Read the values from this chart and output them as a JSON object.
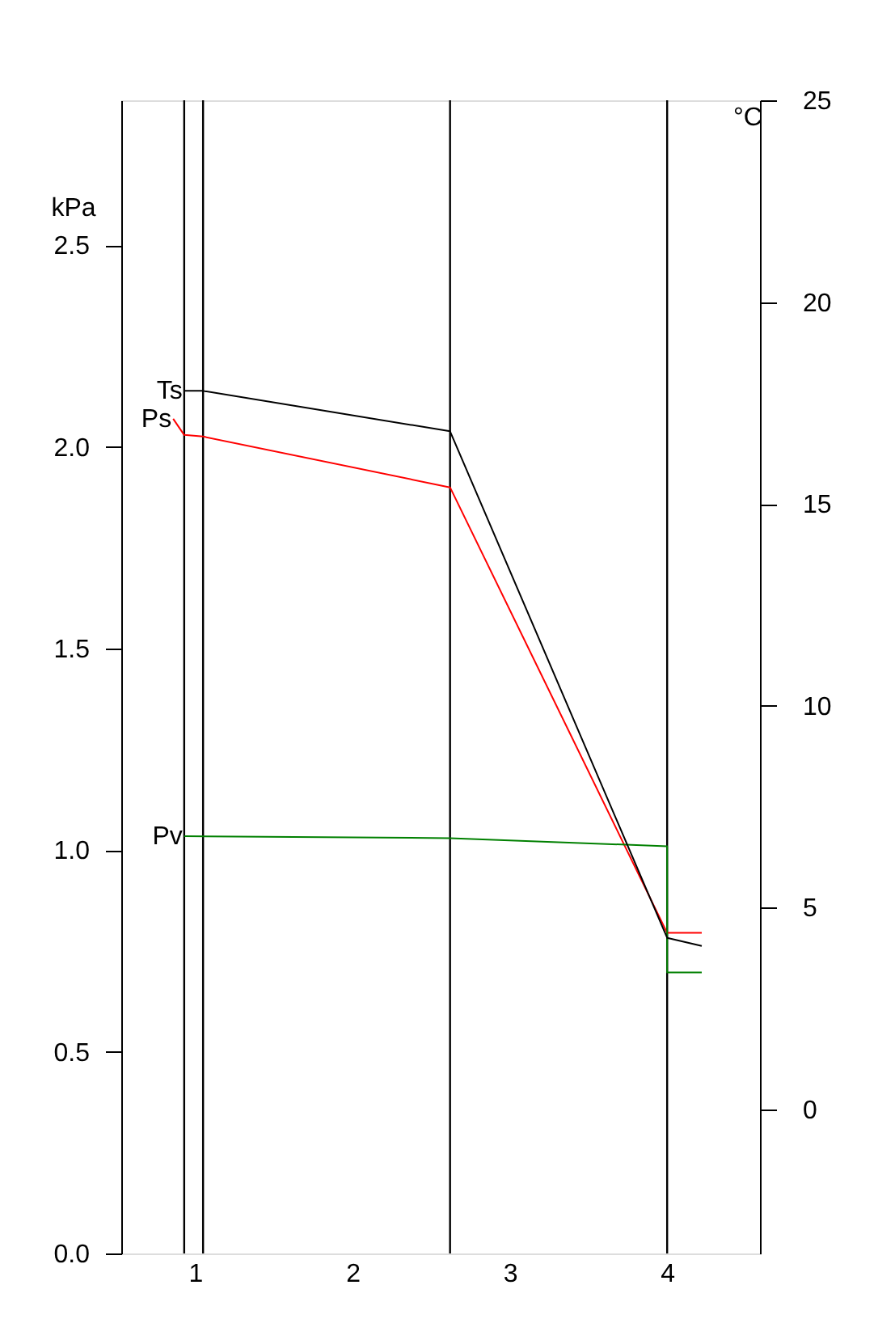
{
  "chart_data": {
    "type": "line",
    "ylabel": "kPa",
    "y2label": "°C",
    "xlim": [
      0.53,
      4.59
    ],
    "xticks": [
      1,
      2,
      3,
      4
    ],
    "ylim": [
      0,
      2.86
    ],
    "yticks": [
      {
        "value": 0,
        "label": "0.0"
      },
      0.5,
      {
        "value": 1,
        "label": "1.0"
      },
      1.5,
      {
        "value": 2,
        "label": "2.0"
      },
      2.5
    ],
    "y2lim": [
      -3.57,
      25
    ],
    "y2ticks": [
      0,
      5,
      10,
      15,
      20,
      25
    ],
    "series": [
      {
        "name": "Ts",
        "color": "#000000",
        "axis": "y2",
        "x": [
          0.93,
          1.05,
          2.62,
          4.0,
          4.22
        ],
        "values": [
          17.8,
          17.8,
          16.8,
          4.25,
          4.05
        ]
      },
      {
        "name": "Ps",
        "color": "#ff0000",
        "x": [
          0.86,
          0.93,
          1.05,
          2.62,
          4.0,
          4.22
        ],
        "values": [
          2.07,
          2.03,
          2.026,
          1.9,
          0.795,
          0.795
        ]
      },
      {
        "name": "Pv",
        "color": "#008000",
        "x": [
          0.93,
          2.62,
          4.0,
          4.0,
          4.22
        ],
        "values": [
          1.035,
          1.03,
          1.01,
          0.697,
          0.697
        ]
      }
    ],
    "ref_lines": [
      {
        "axis": "x",
        "value": 0.93,
        "color": "#000000"
      },
      {
        "axis": "x",
        "value": 1.05,
        "color": "#000000"
      },
      {
        "axis": "x",
        "value": 2.62,
        "color": "#000000"
      },
      {
        "axis": "x",
        "value": 4.0,
        "color": "#000000"
      }
    ],
    "grid": false,
    "legend": false,
    "marker": "none",
    "line_style": "solid"
  }
}
